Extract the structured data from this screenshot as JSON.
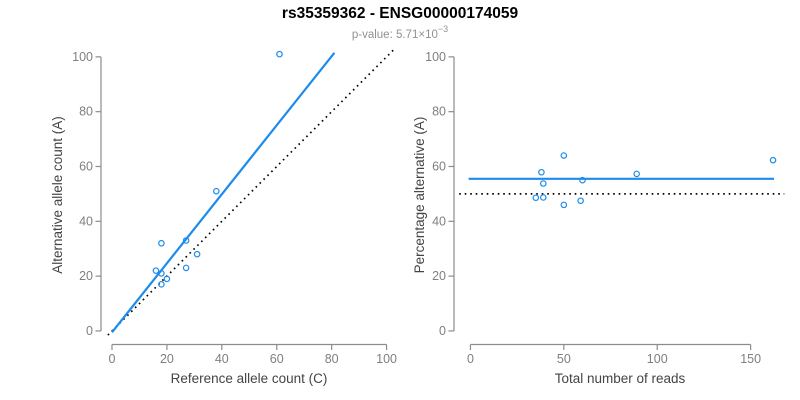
{
  "figure": {
    "title": "rs35359362 - ENSG00000174059",
    "subtitle_prefix": "p-value: 5.71×10",
    "subtitle_exponent": "−3"
  },
  "colors": {
    "accent_blue": "#1f8ceb",
    "reference_black": "#000000",
    "axis_gray": "#8c8c8c",
    "tick_label_gray": "#7f7f7f",
    "axis_title_gray": "#444444",
    "subtitle_gray": "#919191"
  },
  "chart_data": [
    {
      "type": "scatter",
      "name": "allele-counts",
      "xlabel": "Reference allele count (C)",
      "ylabel": "Alternative allele count (A)",
      "xticks": [
        0,
        20,
        40,
        60,
        80,
        100
      ],
      "yticks": [
        0,
        20,
        40,
        60,
        80,
        100
      ],
      "xlim": [
        -4,
        103.8
      ],
      "ylim": [
        -4.4,
        103.6
      ],
      "grid": false,
      "legend": "none",
      "points": [
        [
          61,
          101
        ],
        [
          38,
          51
        ],
        [
          18,
          32
        ],
        [
          27,
          33
        ],
        [
          31,
          28
        ],
        [
          27,
          23
        ],
        [
          16,
          22
        ],
        [
          18,
          21
        ],
        [
          20,
          19
        ],
        [
          18,
          17
        ]
      ],
      "fit_line": {
        "style": "solid",
        "color_key": "accent_blue",
        "x1": 0,
        "y1": -0.5,
        "x2": 81,
        "y2": 101.5
      },
      "reference_line": {
        "style": "dotted",
        "color_key": "reference_black",
        "x1": -1.5,
        "y1": -1.5,
        "x2": 103,
        "y2": 103
      }
    },
    {
      "type": "scatter",
      "name": "percentage-vs-reads",
      "xlabel": "Total number of reads",
      "ylabel": "Percentage alternative (A)",
      "xticks": [
        0,
        50,
        100,
        150
      ],
      "yticks": [
        0,
        20,
        40,
        60,
        80,
        100
      ],
      "xlim": [
        -8.8,
        168.4
      ],
      "ylim": [
        -4.4,
        103.6
      ],
      "grid": false,
      "legend": "none",
      "points": [
        [
          162,
          62.3
        ],
        [
          89,
          57.3
        ],
        [
          50,
          64
        ],
        [
          60,
          55
        ],
        [
          59,
          47.5
        ],
        [
          50,
          46
        ],
        [
          38,
          57.9
        ],
        [
          39,
          53.8
        ],
        [
          39,
          48.7
        ],
        [
          35,
          48.6
        ]
      ],
      "fit_line": {
        "style": "solid",
        "color_key": "accent_blue",
        "x1": -1,
        "y1": 55.5,
        "x2": 162.5,
        "y2": 55.5
      },
      "reference_line": {
        "style": "dotted",
        "color_key": "reference_black",
        "x1": -6,
        "y1": 50,
        "x2": 168,
        "y2": 50
      }
    }
  ]
}
